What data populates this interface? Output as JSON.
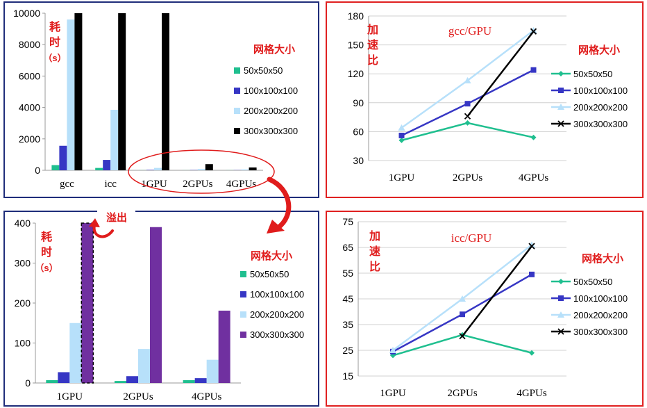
{
  "legend_title": "网格大小",
  "ylabel_parts": [
    "耗",
    "时",
    "（s）"
  ],
  "speedup_parts": [
    "加",
    "速",
    "比"
  ],
  "overflow_label": "溢出",
  "chart_data": [
    {
      "type": "bar",
      "categories": [
        "gcc",
        "icc",
        "1GPU",
        "2GPUs",
        "4GPUs"
      ],
      "series": [
        {
          "name": "50x50x50",
          "values": [
            330,
            150,
            7,
            5,
            7
          ]
        },
        {
          "name": "100x100x100",
          "values": [
            1560,
            660,
            27,
            17,
            12
          ]
        },
        {
          "name": "200x200x200",
          "values": [
            9600,
            3850,
            150,
            85,
            58
          ]
        },
        {
          "name": "300x300x300",
          "values": [
            10000,
            10000,
            10000,
            390,
            181
          ]
        }
      ],
      "ylim": [
        0,
        10000
      ],
      "yticks": [
        0,
        2000,
        4000,
        6000,
        8000,
        10000
      ],
      "legend": "right"
    },
    {
      "type": "line",
      "title": "gcc/GPU",
      "categories": [
        "1GPU",
        "2GPUs",
        "4GPUs"
      ],
      "series": [
        {
          "name": "50x50x50",
          "values": [
            51,
            69,
            54
          ]
        },
        {
          "name": "100x100x100",
          "values": [
            56,
            89,
            124
          ]
        },
        {
          "name": "200x200x200",
          "values": [
            64,
            113,
            165
          ]
        },
        {
          "name": "300x300x300",
          "values": [
            null,
            76,
            164
          ]
        }
      ],
      "ylim": [
        30,
        180
      ],
      "yticks": [
        30,
        60,
        90,
        120,
        150,
        180
      ],
      "legend": "right"
    },
    {
      "type": "bar",
      "categories": [
        "1GPU",
        "2GPUs",
        "4GPUs"
      ],
      "series": [
        {
          "name": "50x50x50",
          "values": [
            7,
            5,
            7
          ]
        },
        {
          "name": "100x100x100",
          "values": [
            27,
            17,
            12
          ]
        },
        {
          "name": "200x200x200",
          "values": [
            150,
            85,
            58
          ]
        },
        {
          "name": "300x300x300",
          "values": [
            400,
            390,
            181
          ]
        }
      ],
      "ylim": [
        0,
        400
      ],
      "yticks": [
        0,
        100,
        200,
        300,
        400
      ],
      "legend": "right"
    },
    {
      "type": "line",
      "title": "icc/GPU",
      "categories": [
        "1GPU",
        "2GPUs",
        "4GPUs"
      ],
      "series": [
        {
          "name": "50x50x50",
          "values": [
            23,
            31,
            24
          ]
        },
        {
          "name": "100x100x100",
          "values": [
            24.5,
            39,
            54.5
          ]
        },
        {
          "name": "200x200x200",
          "values": [
            25,
            45,
            66
          ]
        },
        {
          "name": "300x300x300",
          "values": [
            null,
            30.5,
            65.5
          ]
        }
      ],
      "ylim": [
        15,
        75
      ],
      "yticks": [
        15,
        25,
        35,
        45,
        55,
        65,
        75
      ],
      "legend": "right"
    }
  ],
  "colors": {
    "bars": [
      "#1fbf8f",
      "#3636c4",
      "#b7e0fa",
      "#000000"
    ],
    "bars_bottom": [
      "#1fbf8f",
      "#3636c4",
      "#b7e0fa",
      "#7030a0"
    ],
    "lines": [
      "#1fbf8f",
      "#3636c4",
      "#b7e0fa",
      "#000000"
    ],
    "accent_red": "#e01c1c",
    "panel_blue": "#1f2d7a"
  }
}
